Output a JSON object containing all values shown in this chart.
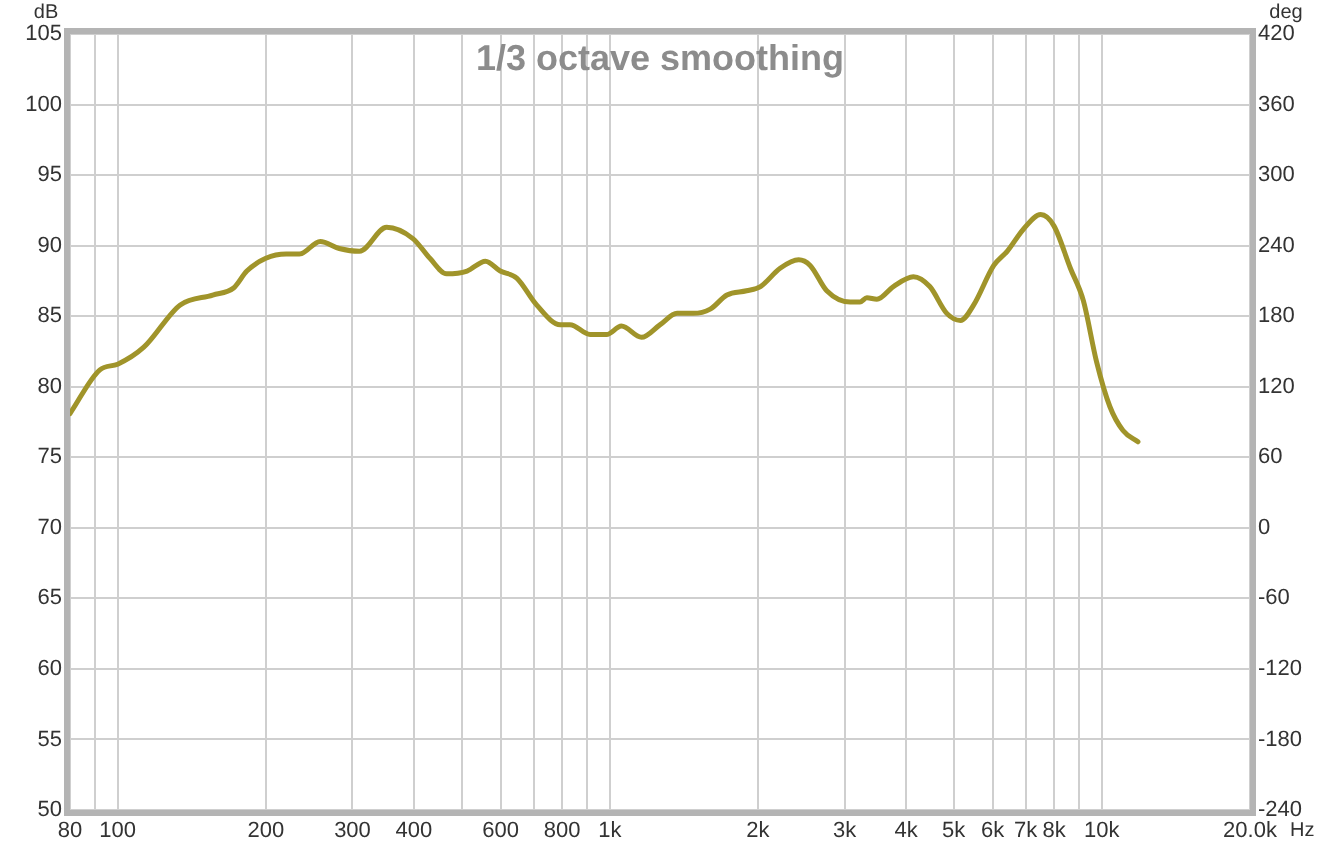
{
  "chart_data": {
    "type": "line",
    "title": "1/3 octave smoothing",
    "xlabel": "Hz",
    "ylabel": "dB",
    "y2label": "deg",
    "log": "x",
    "grid": true,
    "legend": false,
    "marker": "none",
    "line_style": "solid",
    "xlim": [
      80,
      20000
    ],
    "xticks": [
      80,
      {
        "value": 90,
        "label": null
      },
      100,
      200,
      300,
      400,
      {
        "value": 500,
        "label": null
      },
      600,
      {
        "value": 700,
        "label": null
      },
      800,
      {
        "value": 900,
        "label": null
      },
      {
        "value": 1000,
        "label": "1k"
      },
      {
        "value": 2000,
        "label": "2k"
      },
      {
        "value": 3000,
        "label": "3k"
      },
      {
        "value": 4000,
        "label": "4k"
      },
      {
        "value": 5000,
        "label": "5k"
      },
      {
        "value": 6000,
        "label": "6k"
      },
      {
        "value": 7000,
        "label": "7k"
      },
      {
        "value": 8000,
        "label": "8k"
      },
      {
        "value": 9000,
        "label": null
      },
      {
        "value": 10000,
        "label": "10k"
      },
      {
        "value": 20000,
        "label": "20.0k"
      }
    ],
    "ylim": [
      50,
      105
    ],
    "yticks": [
      50,
      55,
      60,
      65,
      70,
      75,
      80,
      85,
      90,
      95,
      100,
      105
    ],
    "y2lim": [
      -240,
      420
    ],
    "y2ticks": [
      -240,
      -180,
      -120,
      -60,
      0,
      60,
      120,
      180,
      240,
      300,
      360,
      420
    ],
    "x": [
      80,
      92,
      100,
      113,
      134,
      156,
      172,
      183,
      200,
      220,
      234,
      258,
      282,
      310,
      352,
      398,
      431,
      466,
      513,
      559,
      599,
      647,
      710,
      793,
      830,
      912,
      985,
      1056,
      1160,
      1266,
      1370,
      1478,
      1600,
      1730,
      1896,
      2024,
      2219,
      2420,
      2554,
      2760,
      3080,
      3225,
      3330,
      3490,
      3770,
      4140,
      4470,
      4840,
      5160,
      5490,
      6030,
      6420,
      6940,
      7510,
      7990,
      8630,
      9170,
      9750,
      10380,
      11040,
      11840
    ],
    "series": [
      {
        "color": "#a0942a",
        "values": [
          78.1,
          81.2,
          81.6,
          82.8,
          85.8,
          86.5,
          87.0,
          88.2,
          89.1,
          89.4,
          89.4,
          90.3,
          89.8,
          89.6,
          91.3,
          90.5,
          89.1,
          88.0,
          88.2,
          88.9,
          88.2,
          87.7,
          85.8,
          84.4,
          84.4,
          83.7,
          83.7,
          84.3,
          83.5,
          84.4,
          85.2,
          85.2,
          85.5,
          86.5,
          86.8,
          87.1,
          88.4,
          89.0,
          88.6,
          86.8,
          86.0,
          86.0,
          86.3,
          86.2,
          87.1,
          87.8,
          87.1,
          85.2,
          84.7,
          85.8,
          88.6,
          89.6,
          91.2,
          92.2,
          91.4,
          88.4,
          86.1,
          81.8,
          78.6,
          76.9,
          76.1
        ]
      }
    ]
  }
}
